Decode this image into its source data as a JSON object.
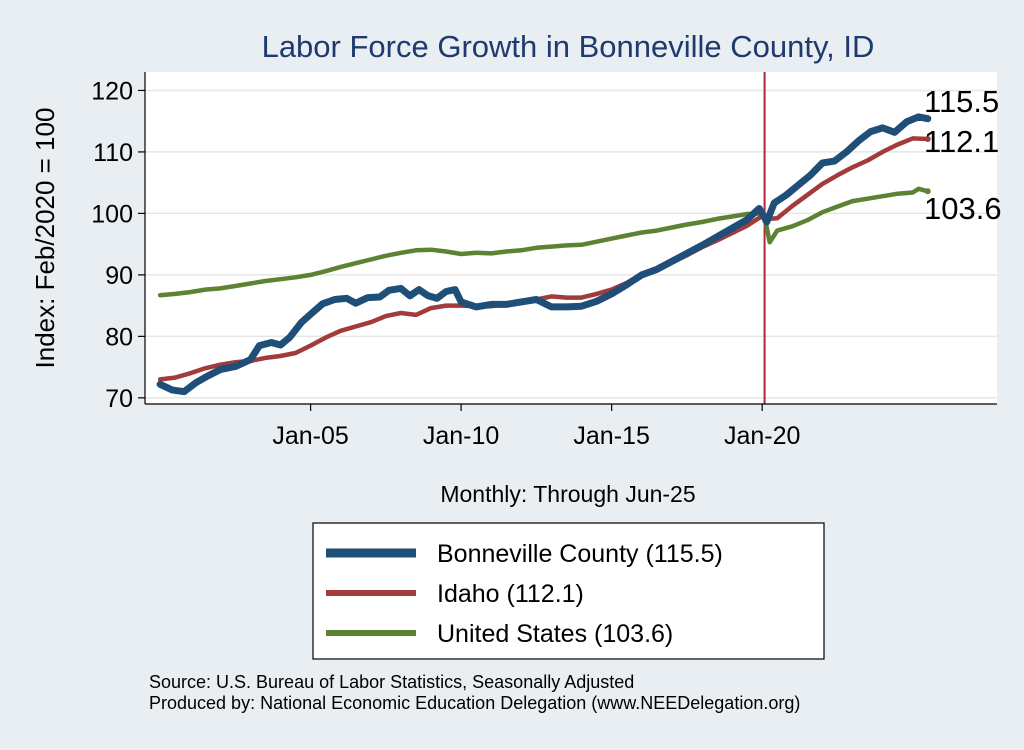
{
  "chart_data": {
    "type": "line",
    "title": "Labor Force Growth in Bonneville  County, ID",
    "ylabel": "Index: Feb/2020 = 100",
    "xlabel": "Monthly: Through Jun-25",
    "ylim": [
      69,
      123
    ],
    "yticks": [
      70,
      80,
      90,
      100,
      110,
      120
    ],
    "xlim": [
      1999.5,
      2027.8
    ],
    "xticks": [
      {
        "value": 2005.0,
        "label": "Jan-05"
      },
      {
        "value": 2010.0,
        "label": "Jan-10"
      },
      {
        "value": 2015.0,
        "label": "Jan-15"
      },
      {
        "value": 2020.0,
        "label": "Jan-20"
      }
    ],
    "vline": {
      "x": 2020.08,
      "color": "#b0263a"
    },
    "grid": true,
    "legend_position": "bottom",
    "series": [
      {
        "name": "Bonneville  County (115.5)",
        "color": "#1f4e79",
        "end_label": "115.5",
        "points": [
          [
            2000.0,
            72.2
          ],
          [
            2000.4,
            71.3
          ],
          [
            2000.8,
            71.0
          ],
          [
            2001.2,
            72.5
          ],
          [
            2001.6,
            73.6
          ],
          [
            2002.0,
            74.6
          ],
          [
            2002.5,
            75.1
          ],
          [
            2003.0,
            76.2
          ],
          [
            2003.3,
            78.5
          ],
          [
            2003.7,
            79.0
          ],
          [
            2004.0,
            78.6
          ],
          [
            2004.3,
            79.8
          ],
          [
            2004.7,
            82.3
          ],
          [
            2005.0,
            83.6
          ],
          [
            2005.4,
            85.3
          ],
          [
            2005.8,
            86.0
          ],
          [
            2006.2,
            86.2
          ],
          [
            2006.5,
            85.4
          ],
          [
            2006.9,
            86.3
          ],
          [
            2007.3,
            86.4
          ],
          [
            2007.6,
            87.5
          ],
          [
            2008.0,
            87.8
          ],
          [
            2008.3,
            86.6
          ],
          [
            2008.6,
            87.6
          ],
          [
            2008.9,
            86.6
          ],
          [
            2009.2,
            86.2
          ],
          [
            2009.5,
            87.3
          ],
          [
            2009.8,
            87.6
          ],
          [
            2010.0,
            85.6
          ],
          [
            2010.5,
            84.8
          ],
          [
            2011.0,
            85.2
          ],
          [
            2011.5,
            85.2
          ],
          [
            2012.0,
            85.6
          ],
          [
            2012.5,
            86.0
          ],
          [
            2013.0,
            84.8
          ],
          [
            2013.5,
            84.8
          ],
          [
            2014.0,
            84.9
          ],
          [
            2014.5,
            85.7
          ],
          [
            2015.0,
            86.9
          ],
          [
            2015.5,
            88.4
          ],
          [
            2016.0,
            90.0
          ],
          [
            2016.5,
            90.9
          ],
          [
            2017.0,
            92.2
          ],
          [
            2017.5,
            93.5
          ],
          [
            2018.0,
            94.8
          ],
          [
            2018.5,
            96.2
          ],
          [
            2019.0,
            97.6
          ],
          [
            2019.5,
            99.0
          ],
          [
            2019.9,
            100.8
          ],
          [
            2020.05,
            99.6
          ],
          [
            2020.15,
            98.6
          ],
          [
            2020.4,
            101.7
          ],
          [
            2020.8,
            103.0
          ],
          [
            2021.2,
            104.6
          ],
          [
            2021.6,
            106.2
          ],
          [
            2022.0,
            108.2
          ],
          [
            2022.4,
            108.5
          ],
          [
            2022.8,
            110.0
          ],
          [
            2023.2,
            111.8
          ],
          [
            2023.6,
            113.3
          ],
          [
            2024.0,
            113.9
          ],
          [
            2024.4,
            113.2
          ],
          [
            2024.8,
            114.9
          ],
          [
            2025.2,
            115.7
          ],
          [
            2025.5,
            115.4
          ]
        ]
      },
      {
        "name": "Idaho (112.1)",
        "color": "#a23b3b",
        "end_label": "112.1",
        "points": [
          [
            2000.0,
            73.0
          ],
          [
            2000.5,
            73.3
          ],
          [
            2001.0,
            74.0
          ],
          [
            2001.5,
            74.8
          ],
          [
            2002.0,
            75.4
          ],
          [
            2002.5,
            75.8
          ],
          [
            2003.0,
            76.0
          ],
          [
            2003.5,
            76.5
          ],
          [
            2004.0,
            76.8
          ],
          [
            2004.5,
            77.3
          ],
          [
            2005.0,
            78.5
          ],
          [
            2005.5,
            79.8
          ],
          [
            2006.0,
            80.9
          ],
          [
            2006.5,
            81.6
          ],
          [
            2007.0,
            82.3
          ],
          [
            2007.5,
            83.3
          ],
          [
            2008.0,
            83.8
          ],
          [
            2008.5,
            83.5
          ],
          [
            2009.0,
            84.6
          ],
          [
            2009.5,
            85.0
          ],
          [
            2010.0,
            85.0
          ],
          [
            2010.5,
            84.9
          ],
          [
            2011.0,
            84.9
          ],
          [
            2011.5,
            85.3
          ],
          [
            2012.0,
            85.8
          ],
          [
            2012.5,
            86.0
          ],
          [
            2013.0,
            86.5
          ],
          [
            2013.5,
            86.3
          ],
          [
            2014.0,
            86.3
          ],
          [
            2014.5,
            86.9
          ],
          [
            2015.0,
            87.6
          ],
          [
            2015.5,
            88.7
          ],
          [
            2016.0,
            90.0
          ],
          [
            2016.5,
            91.0
          ],
          [
            2017.0,
            92.0
          ],
          [
            2017.5,
            93.2
          ],
          [
            2018.0,
            94.5
          ],
          [
            2018.5,
            95.6
          ],
          [
            2019.0,
            96.8
          ],
          [
            2019.5,
            98.0
          ],
          [
            2020.0,
            99.6
          ],
          [
            2020.2,
            99.1
          ],
          [
            2020.5,
            99.2
          ],
          [
            2021.0,
            101.2
          ],
          [
            2021.5,
            103.0
          ],
          [
            2022.0,
            104.8
          ],
          [
            2022.5,
            106.2
          ],
          [
            2023.0,
            107.5
          ],
          [
            2023.5,
            108.6
          ],
          [
            2024.0,
            110.0
          ],
          [
            2024.5,
            111.2
          ],
          [
            2025.0,
            112.2
          ],
          [
            2025.5,
            112.1
          ]
        ]
      },
      {
        "name": "United States (103.6)",
        "color": "#5e8233",
        "end_label": "103.6",
        "points": [
          [
            2000.0,
            86.7
          ],
          [
            2000.5,
            86.9
          ],
          [
            2001.0,
            87.2
          ],
          [
            2001.5,
            87.6
          ],
          [
            2002.0,
            87.8
          ],
          [
            2002.5,
            88.2
          ],
          [
            2003.0,
            88.6
          ],
          [
            2003.5,
            89.0
          ],
          [
            2004.0,
            89.3
          ],
          [
            2004.5,
            89.6
          ],
          [
            2005.0,
            90.0
          ],
          [
            2005.5,
            90.6
          ],
          [
            2006.0,
            91.3
          ],
          [
            2006.5,
            91.9
          ],
          [
            2007.0,
            92.5
          ],
          [
            2007.5,
            93.1
          ],
          [
            2008.0,
            93.6
          ],
          [
            2008.5,
            94.0
          ],
          [
            2009.0,
            94.1
          ],
          [
            2009.5,
            93.8
          ],
          [
            2010.0,
            93.4
          ],
          [
            2010.5,
            93.6
          ],
          [
            2011.0,
            93.5
          ],
          [
            2011.5,
            93.8
          ],
          [
            2012.0,
            94.0
          ],
          [
            2012.5,
            94.4
          ],
          [
            2013.0,
            94.6
          ],
          [
            2013.5,
            94.8
          ],
          [
            2014.0,
            94.9
          ],
          [
            2014.5,
            95.4
          ],
          [
            2015.0,
            95.9
          ],
          [
            2015.5,
            96.4
          ],
          [
            2016.0,
            96.9
          ],
          [
            2016.5,
            97.2
          ],
          [
            2017.0,
            97.7
          ],
          [
            2017.5,
            98.2
          ],
          [
            2018.0,
            98.6
          ],
          [
            2018.5,
            99.1
          ],
          [
            2019.0,
            99.5
          ],
          [
            2019.5,
            99.9
          ],
          [
            2020.0,
            100.0
          ],
          [
            2020.12,
            98.5
          ],
          [
            2020.25,
            95.3
          ],
          [
            2020.5,
            97.2
          ],
          [
            2021.0,
            97.9
          ],
          [
            2021.5,
            98.9
          ],
          [
            2022.0,
            100.2
          ],
          [
            2022.5,
            101.1
          ],
          [
            2023.0,
            102.0
          ],
          [
            2023.5,
            102.4
          ],
          [
            2024.0,
            102.8
          ],
          [
            2024.5,
            103.2
          ],
          [
            2025.0,
            103.4
          ],
          [
            2025.2,
            104.0
          ],
          [
            2025.5,
            103.6
          ]
        ]
      }
    ]
  },
  "source_note": "Source: U.S. Bureau of Labor Statistics, Seasonally Adjusted",
  "producer_note": "Produced by: National Economic Education Delegation (www.NEEDelegation.org)"
}
